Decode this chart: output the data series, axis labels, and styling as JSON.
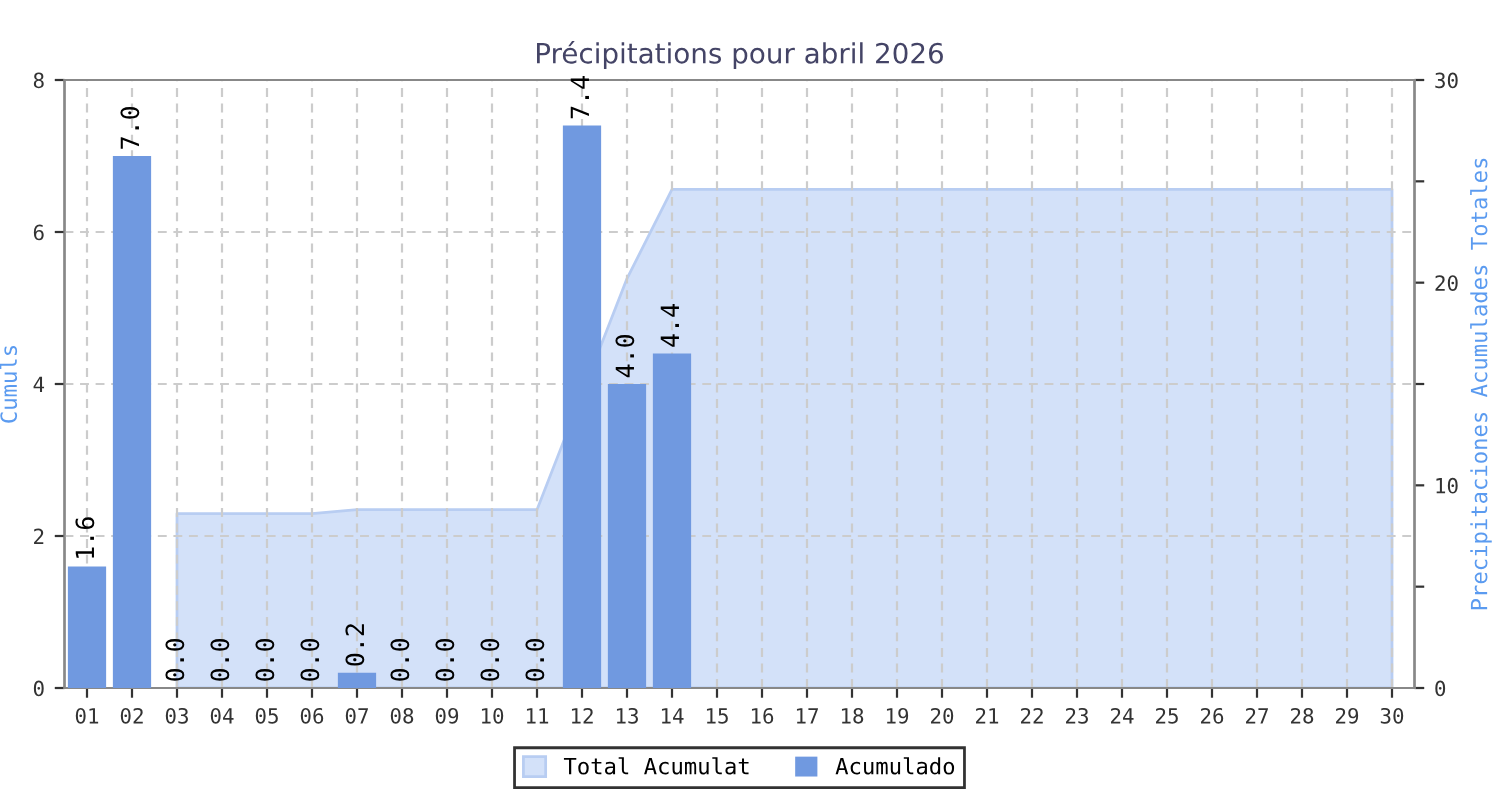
{
  "chart_data": {
    "type": "bar",
    "title": "Précipitations pour abril 2026",
    "ylabel": "Cumuls",
    "y2label": "Precipitaciones Acumulades Totales",
    "categories": [
      "01",
      "02",
      "03",
      "04",
      "05",
      "06",
      "07",
      "08",
      "09",
      "10",
      "11",
      "12",
      "13",
      "14",
      "15",
      "16",
      "17",
      "18",
      "19",
      "20",
      "21",
      "22",
      "23",
      "24",
      "25",
      "26",
      "27",
      "28",
      "29",
      "30"
    ],
    "series": [
      {
        "name": "Total Acumulat",
        "type": "area",
        "axis": "y2",
        "color": "#d3e1f9",
        "values": [
          null,
          null,
          8.6,
          8.6,
          8.6,
          8.6,
          8.8,
          8.8,
          8.8,
          8.8,
          8.8,
          null,
          20.2,
          24.6,
          24.6,
          24.6,
          24.6,
          24.6,
          24.6,
          24.6,
          24.6,
          24.6,
          24.6,
          24.6,
          24.6,
          24.6,
          24.6,
          24.6,
          24.6,
          24.6
        ]
      },
      {
        "name": "Acumulado",
        "color": "#7099e0",
        "values": [
          1.6,
          7.0,
          0.0,
          0.0,
          0.0,
          0.0,
          0.2,
          0.0,
          0.0,
          0.0,
          0.0,
          7.4,
          4.0,
          4.4,
          null,
          null,
          null,
          null,
          null,
          null,
          null,
          null,
          null,
          null,
          null,
          null,
          null,
          null,
          null,
          null
        ],
        "value_labels": [
          "1.6",
          "7.0",
          "0.0",
          "0.0",
          "0.0",
          "0.0",
          "0.2",
          "0.0",
          "0.0",
          "0.0",
          "0.0",
          "7.4",
          "4.0",
          "4.4",
          null,
          null,
          null,
          null,
          null,
          null,
          null,
          null,
          null,
          null,
          null,
          null,
          null,
          null,
          null,
          null
        ]
      }
    ],
    "ylim": [
      0,
      8
    ],
    "yticks": [
      0,
      2,
      4,
      6,
      8
    ],
    "y2lim": [
      0,
      30
    ],
    "y2ticks": [
      0,
      {
        "value": 5,
        "label": null
      },
      10,
      {
        "value": 15,
        "label": null
      },
      20,
      {
        "value": 25,
        "label": null
      },
      30
    ],
    "grid": true,
    "legend": "bottom"
  }
}
